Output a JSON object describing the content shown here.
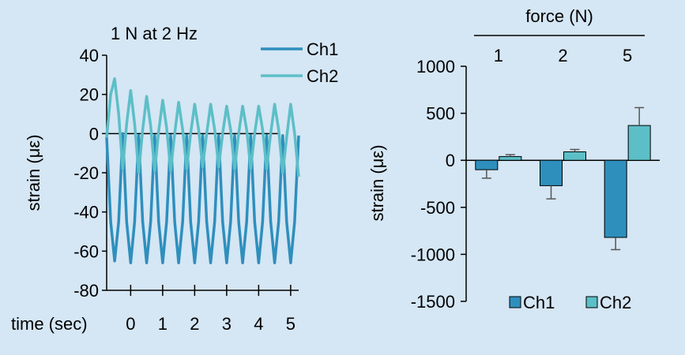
{
  "background": "#d5e6f4",
  "colors": {
    "ch1": "#2e8fbd",
    "ch2": "#5cbfc7",
    "axis": "#000000",
    "errorbar": "#555555"
  },
  "chart_data": [
    {
      "type": "line",
      "title": "1 N at 2 Hz",
      "xlabel": "time (sec)",
      "ylabel": "strain (με)",
      "xlim": [
        -0.75,
        5.25
      ],
      "ylim": [
        -80,
        40
      ],
      "x_ticks": [
        0,
        1,
        2,
        3,
        4,
        5
      ],
      "x_tick_labels": [
        "0",
        "1",
        "2",
        "3",
        "4",
        "5"
      ],
      "y_ticks": [
        -80,
        -60,
        -40,
        -20,
        0,
        20,
        40
      ],
      "y_tick_labels": [
        "-80",
        "-60",
        "-40",
        "-20",
        "0",
        "20",
        "40"
      ],
      "reference_line_y": 0,
      "legend": "top-right",
      "series": [
        {
          "name": "Ch1",
          "color": "#2e8fbd",
          "x": [
            -0.75,
            -0.625,
            -0.5,
            -0.375,
            -0.25,
            -0.125,
            0,
            0.125,
            0.25,
            0.375,
            0.5,
            0.625,
            0.75,
            0.875,
            1,
            1.125,
            1.25,
            1.375,
            1.5,
            1.625,
            1.75,
            1.875,
            2,
            2.125,
            2.25,
            2.375,
            2.5,
            2.625,
            2.75,
            2.875,
            3,
            3.125,
            3.25,
            3.375,
            3.5,
            3.625,
            3.75,
            3.875,
            4,
            4.125,
            4.25,
            4.375,
            4.5,
            4.625,
            4.75,
            4.875,
            5,
            5.125,
            5.25
          ],
          "values": [
            -2,
            -45,
            -65,
            -45,
            0,
            -45,
            -66,
            -45,
            -1,
            -45,
            -66,
            -45,
            -1,
            -45,
            -66,
            -45,
            -1,
            -45,
            -66,
            -45,
            -1,
            -45,
            -66,
            -45,
            -1,
            -45,
            -66,
            -45,
            -1,
            -45,
            -66,
            -45,
            -1,
            -45,
            -66,
            -45,
            -1,
            -45,
            -66,
            -45,
            -1,
            -45,
            -66,
            -45,
            -1,
            -45,
            -66,
            -45,
            -1
          ]
        },
        {
          "name": "Ch2",
          "color": "#5cbfc7",
          "x": [
            -0.75,
            -0.625,
            -0.5,
            -0.375,
            -0.25,
            -0.125,
            0,
            0.125,
            0.25,
            0.375,
            0.5,
            0.625,
            0.75,
            0.875,
            1,
            1.125,
            1.25,
            1.375,
            1.5,
            1.625,
            1.75,
            1.875,
            2,
            2.125,
            2.25,
            2.375,
            2.5,
            2.625,
            2.75,
            2.875,
            3,
            3.125,
            3.25,
            3.375,
            3.5,
            3.625,
            3.75,
            3.875,
            4,
            4.125,
            4.25,
            4.375,
            4.5,
            4.625,
            4.75,
            4.875,
            5,
            5.125,
            5.25
          ],
          "values": [
            -2,
            20,
            28,
            10,
            -18,
            5,
            22,
            5,
            -20,
            2,
            19,
            4,
            -19,
            1,
            17,
            3,
            -19,
            0,
            16,
            2,
            -18,
            0,
            15,
            2,
            -17,
            0,
            15,
            2,
            -17,
            0,
            14,
            2,
            -18,
            0,
            14,
            2,
            -18,
            0,
            14,
            2,
            -18,
            0,
            15,
            2,
            -20,
            -2,
            15,
            0,
            -22
          ]
        }
      ]
    },
    {
      "type": "bar",
      "title": "force (N)",
      "xlabel": "force (N)",
      "ylabel": "strain (με)",
      "categories": [
        "1",
        "2",
        "5"
      ],
      "ylim": [
        -1500,
        1000
      ],
      "y_ticks": [
        -1500,
        -1000,
        -500,
        0,
        500,
        1000
      ],
      "y_tick_labels": [
        "-1500",
        "-1000",
        "-500",
        "0",
        "500",
        "1000"
      ],
      "legend": "bottom",
      "series": [
        {
          "name": "Ch1",
          "color": "#2e8fbd",
          "values": [
            -100,
            -270,
            -820
          ],
          "errors": [
            90,
            140,
            130
          ]
        },
        {
          "name": "Ch2",
          "color": "#5cbfc7",
          "values": [
            40,
            90,
            370
          ],
          "errors": [
            20,
            25,
            190
          ]
        }
      ]
    }
  ]
}
